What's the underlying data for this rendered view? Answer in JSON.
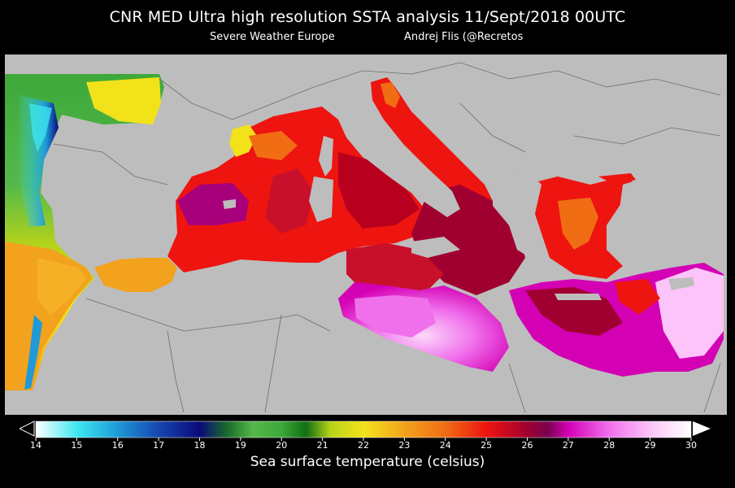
{
  "header": {
    "title": "CNR MED Ultra high resolution SSTA analysis 11/Sept/2018 00UTC",
    "source": "Severe Weather Europe",
    "author": "Andrej Flis (@Recretos"
  },
  "colorbar": {
    "label": "Sea surface temperature (celsius)",
    "min": 14,
    "max": 30,
    "ticks": [
      "14",
      "15",
      "16",
      "17",
      "18",
      "19",
      "20",
      "21",
      "22",
      "23",
      "24",
      "25",
      "26",
      "27",
      "28",
      "29",
      "30"
    ],
    "stops": [
      {
        "t": 14,
        "color": "#ffffff"
      },
      {
        "t": 15,
        "color": "#3ee8f0"
      },
      {
        "t": 16,
        "color": "#1f9ad8"
      },
      {
        "t": 17,
        "color": "#1546b0"
      },
      {
        "t": 18,
        "color": "#0a0a7a"
      },
      {
        "t": 18.7,
        "color": "#1a6f2a"
      },
      {
        "t": 19.3,
        "color": "#55b84a"
      },
      {
        "t": 20,
        "color": "#3ea83a"
      },
      {
        "t": 20.6,
        "color": "#0f6f12"
      },
      {
        "t": 21.2,
        "color": "#b8d418"
      },
      {
        "t": 22,
        "color": "#f2e21a"
      },
      {
        "t": 23,
        "color": "#f2a21c"
      },
      {
        "t": 24,
        "color": "#f06d14"
      },
      {
        "t": 25,
        "color": "#ee1410"
      },
      {
        "t": 26,
        "color": "#a00030"
      },
      {
        "t": 26.5,
        "color": "#7a0050"
      },
      {
        "t": 27,
        "color": "#d400b4"
      },
      {
        "t": 28,
        "color": "#f070ec"
      },
      {
        "t": 29,
        "color": "#fcc4f8"
      },
      {
        "t": 30,
        "color": "#ffffff"
      }
    ]
  },
  "map": {
    "land_color": "#bdbdbd",
    "border_color": "#6e6e6e"
  }
}
